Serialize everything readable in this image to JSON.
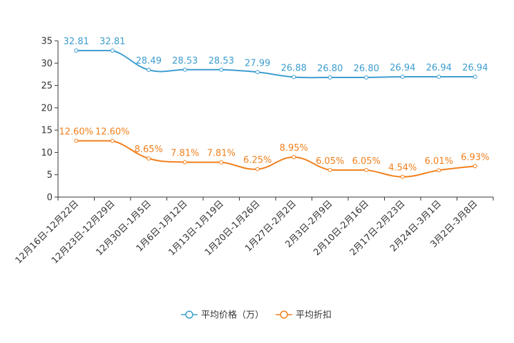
{
  "chart_data": {
    "type": "line",
    "categories": [
      "12月16日-12月22日",
      "12月23日-12月29日",
      "12月30日-1月5日",
      "1月6日-1月12日",
      "1月13日-1月19日",
      "1月20日-1月26日",
      "1月27日-2月2日",
      "2月3日-2月9日",
      "2月10日-2月16日",
      "2月17日-2月23日",
      "2月24日-3月1日",
      "3月2日-3月8日"
    ],
    "ylim": [
      0,
      35
    ],
    "yticks": [
      0,
      5,
      10,
      15,
      20,
      25,
      30,
      35
    ],
    "series": [
      {
        "name": "平均价格（万）",
        "color": "#3c9dcf",
        "values": [
          32.81,
          32.81,
          28.49,
          28.53,
          28.53,
          27.99,
          26.88,
          26.8,
          26.8,
          26.94,
          26.94,
          26.94
        ],
        "labels": [
          "32.81",
          "32.81",
          "28.49",
          "28.53",
          "28.53",
          "27.99",
          "26.88",
          "26.80",
          "26.80",
          "26.94",
          "26.94",
          "26.94"
        ]
      },
      {
        "name": "平均折扣",
        "color": "#f07f1b",
        "values": [
          12.6,
          12.6,
          8.65,
          7.81,
          7.81,
          6.25,
          8.95,
          6.05,
          6.05,
          4.54,
          6.01,
          6.93
        ],
        "labels": [
          "12.60%",
          "12.60%",
          "8.65%",
          "7.81%",
          "7.81%",
          "6.25%",
          "8.95%",
          "6.05%",
          "6.05%",
          "4.54%",
          "6.01%",
          "6.93%"
        ]
      }
    ]
  }
}
